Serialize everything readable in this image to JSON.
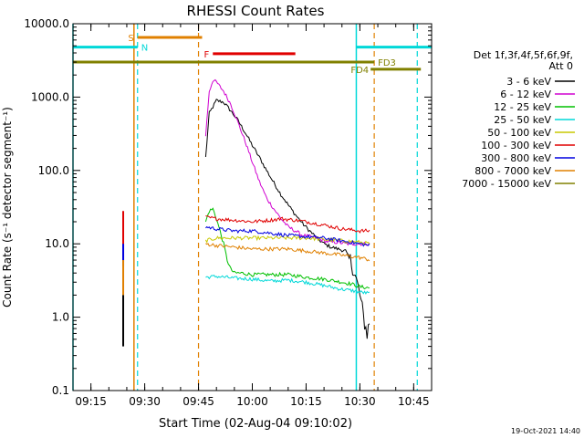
{
  "chart_data": {
    "type": "line",
    "title": "RHESSI Count Rates",
    "xlabel": "Start Time (02-Aug-04 09:10:02)",
    "ylabel": "Count Rate (s⁻¹ detector segment⁻¹)",
    "yscale": "log",
    "ylim": [
      0.1,
      10000
    ],
    "xlim": [
      "09:10",
      "10:50"
    ],
    "x_ticks": [
      "09:15",
      "09:30",
      "09:45",
      "10:00",
      "10:15",
      "10:30",
      "10:45"
    ],
    "y_ticks": [
      "0.1",
      "1.0",
      "10.0",
      "100.0",
      "1000.0",
      "10000.0"
    ],
    "legend_header": [
      "Det 1f,3f,4f,5f,6f,9f,",
      "Att 0"
    ],
    "legend_position": "right",
    "timestamp": "19-Oct-2021 14:40",
    "series": [
      {
        "name": "3 - 6 keV",
        "color": "#000000",
        "points": [
          [
            "09:47",
            150
          ],
          [
            "09:48",
            600
          ],
          [
            "09:50",
            900
          ],
          [
            "09:52",
            850
          ],
          [
            "09:54",
            650
          ],
          [
            "09:56",
            480
          ],
          [
            "09:58",
            330
          ],
          [
            "10:00",
            220
          ],
          [
            "10:02",
            150
          ],
          [
            "10:04",
            100
          ],
          [
            "10:06",
            68
          ],
          [
            "10:08",
            47
          ],
          [
            "10:10",
            34
          ],
          [
            "10:12",
            25
          ],
          [
            "10:14",
            19
          ],
          [
            "10:16",
            15
          ],
          [
            "10:18",
            12
          ],
          [
            "10:20",
            10
          ],
          [
            "10:22",
            9
          ],
          [
            "10:24",
            8.5
          ],
          [
            "10:26",
            8
          ],
          [
            "10:28",
            5
          ],
          [
            "10:30",
            2
          ],
          [
            "10:31",
            1
          ],
          [
            "10:32",
            0.6
          ],
          [
            "10:33",
            1
          ]
        ]
      },
      {
        "name": "6 - 12 keV",
        "color": "#d000d0",
        "points": [
          [
            "09:47",
            300
          ],
          [
            "09:48",
            1200
          ],
          [
            "09:49",
            1700
          ],
          [
            "09:50",
            1600
          ],
          [
            "09:52",
            1200
          ],
          [
            "09:54",
            800
          ],
          [
            "09:56",
            450
          ],
          [
            "09:58",
            250
          ],
          [
            "10:00",
            130
          ],
          [
            "10:02",
            70
          ],
          [
            "10:04",
            42
          ],
          [
            "10:06",
            30
          ],
          [
            "10:08",
            22
          ],
          [
            "10:10",
            17
          ],
          [
            "10:12",
            15
          ],
          [
            "10:14",
            13
          ],
          [
            "10:16",
            12.5
          ],
          [
            "10:18",
            12
          ],
          [
            "10:20",
            11
          ],
          [
            "10:22",
            10.5
          ],
          [
            "10:24",
            10.5
          ],
          [
            "10:26",
            10
          ],
          [
            "10:28",
            10
          ],
          [
            "10:30",
            10
          ],
          [
            "10:32",
            10
          ],
          [
            "10:33",
            10
          ]
        ]
      },
      {
        "name": "12 - 25 keV",
        "color": "#00c000",
        "points": [
          [
            "09:47",
            20
          ],
          [
            "09:48",
            28
          ],
          [
            "09:49",
            30
          ],
          [
            "09:50",
            22
          ],
          [
            "09:51",
            15
          ],
          [
            "09:52",
            10
          ],
          [
            "09:53",
            6
          ],
          [
            "09:54",
            4.5
          ],
          [
            "09:55",
            4
          ],
          [
            "09:57",
            4
          ],
          [
            "10:00",
            3.8
          ],
          [
            "10:05",
            3.8
          ],
          [
            "10:10",
            3.8
          ],
          [
            "10:15",
            3.5
          ],
          [
            "10:20",
            3.3
          ],
          [
            "10:25",
            3
          ],
          [
            "10:28",
            2.8
          ],
          [
            "10:30",
            2.6
          ],
          [
            "10:33",
            2.5
          ]
        ]
      },
      {
        "name": "25 - 50 keV",
        "color": "#00d8d8",
        "points": [
          [
            "09:47",
            3.5
          ],
          [
            "09:50",
            3.6
          ],
          [
            "09:55",
            3.4
          ],
          [
            "10:00",
            3.3
          ],
          [
            "10:05",
            3.1
          ],
          [
            "10:10",
            3.2
          ],
          [
            "10:15",
            3.0
          ],
          [
            "10:20",
            2.7
          ],
          [
            "10:25",
            2.4
          ],
          [
            "10:28",
            2.3
          ],
          [
            "10:30",
            2.2
          ],
          [
            "10:33",
            2.1
          ]
        ]
      },
      {
        "name": "50 - 100 keV",
        "color": "#c8c800",
        "points": [
          [
            "09:47",
            11
          ],
          [
            "09:50",
            12
          ],
          [
            "09:55",
            12
          ],
          [
            "10:00",
            12
          ],
          [
            "10:05",
            12
          ],
          [
            "10:10",
            12
          ],
          [
            "10:15",
            12
          ],
          [
            "10:20",
            11.5
          ],
          [
            "10:25",
            11
          ],
          [
            "10:30",
            10.5
          ],
          [
            "10:33",
            10
          ]
        ]
      },
      {
        "name": "100 - 300 keV",
        "color": "#e00000",
        "points": [
          [
            "09:47",
            23
          ],
          [
            "09:50",
            22
          ],
          [
            "09:55",
            21
          ],
          [
            "10:00",
            20
          ],
          [
            "10:05",
            21
          ],
          [
            "10:08",
            22
          ],
          [
            "10:12",
            21
          ],
          [
            "10:15",
            20
          ],
          [
            "10:20",
            18
          ],
          [
            "10:25",
            16
          ],
          [
            "10:30",
            15
          ],
          [
            "10:33",
            15
          ]
        ]
      },
      {
        "name": "300 - 800 keV",
        "color": "#0000e0",
        "points": [
          [
            "09:47",
            17
          ],
          [
            "09:50",
            16
          ],
          [
            "09:55",
            15
          ],
          [
            "10:00",
            15
          ],
          [
            "10:05",
            14
          ],
          [
            "10:10",
            13
          ],
          [
            "10:15",
            12.5
          ],
          [
            "10:20",
            12
          ],
          [
            "10:25",
            11
          ],
          [
            "10:30",
            10
          ],
          [
            "10:33",
            9.5
          ]
        ]
      },
      {
        "name": "800 - 7000 keV",
        "color": "#e08000",
        "points": [
          [
            "09:47",
            10
          ],
          [
            "09:50",
            9.5
          ],
          [
            "09:55",
            9
          ],
          [
            "10:00",
            8.5
          ],
          [
            "10:05",
            8.5
          ],
          [
            "10:10",
            8.5
          ],
          [
            "10:15",
            8
          ],
          [
            "10:20",
            7.5
          ],
          [
            "10:25",
            7
          ],
          [
            "10:30",
            6.5
          ],
          [
            "10:33",
            6
          ]
        ]
      },
      {
        "name": "7000 - 15000 keV",
        "color": "#808000",
        "points": []
      }
    ],
    "pre_spike": [
      {
        "color": "#e00000",
        "range": [
          6,
          28
        ]
      },
      {
        "color": "#0000e0",
        "range": [
          5,
          10
        ]
      },
      {
        "color": "#e08000",
        "range": [
          2,
          6
        ]
      },
      {
        "color": "#000000",
        "range": [
          0.4,
          2
        ]
      }
    ],
    "spike_time": "09:24",
    "solid_vlines": [
      {
        "time": "09:10",
        "color": "#00d8d8"
      },
      {
        "time": "09:27",
        "color": "#e08000"
      },
      {
        "time": "10:29",
        "color": "#00d8d8"
      }
    ],
    "dashed_vlines": [
      {
        "time": "09:28",
        "color": "#00d8d8"
      },
      {
        "time": "09:45",
        "color": "#e08000"
      },
      {
        "time": "10:34",
        "color": "#e08000"
      },
      {
        "time": "10:46",
        "color": "#00d8d8"
      }
    ],
    "flag_bars": [
      {
        "label": "S",
        "color": "#e08000",
        "start": "09:28",
        "end": "09:46",
        "level": 6500
      },
      {
        "label": "N",
        "color": "#00d8d8",
        "start": "09:10",
        "end": "09:28",
        "level": 4800
      },
      {
        "label": "",
        "color": "#00d8d8",
        "start": "10:29",
        "end": "10:50",
        "level": 4800
      },
      {
        "label": "F",
        "color": "#e00000",
        "start": "09:49",
        "end": "10:12",
        "level": 3900
      },
      {
        "label": "FD3",
        "color": "#808000",
        "start": "09:10",
        "end": "10:34",
        "level": 3000
      },
      {
        "label": "FD4",
        "color": "#808000",
        "start": "10:33",
        "end": "10:47",
        "level": 2400
      }
    ]
  }
}
